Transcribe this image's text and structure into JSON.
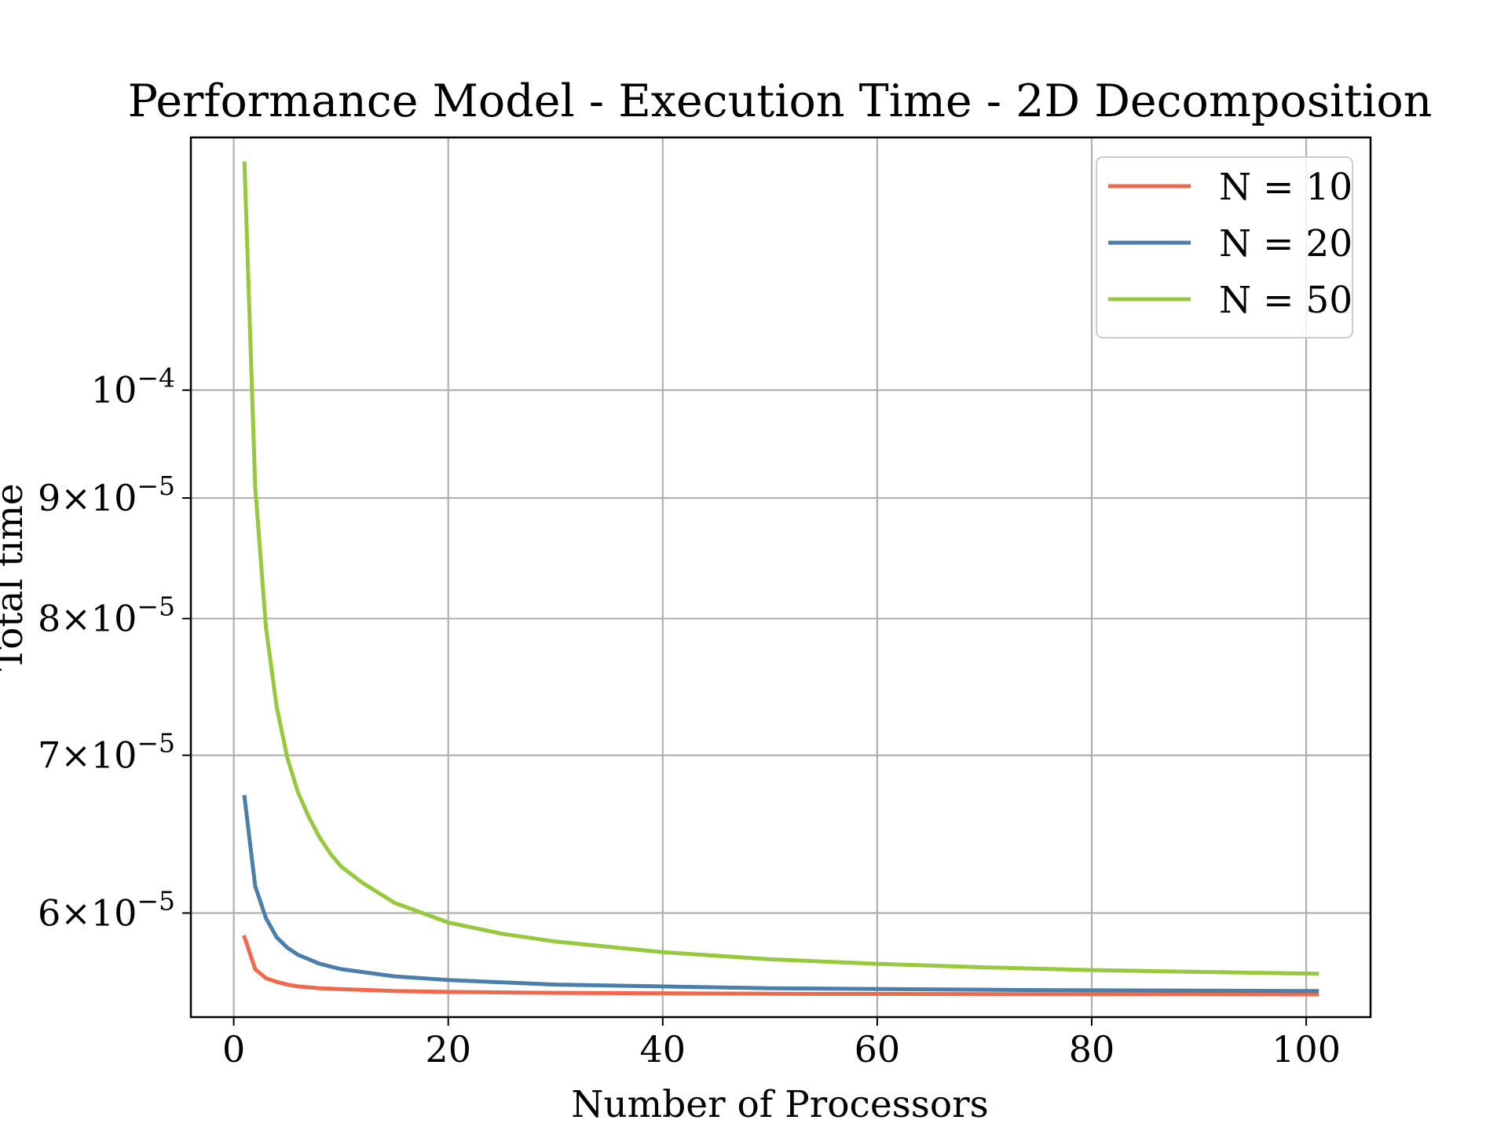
{
  "chart_data": {
    "type": "line",
    "title": "Performance Model - Execution Time - 2D Decomposition",
    "xlabel": "Number of Processors",
    "ylabel": "Total time",
    "xlim": [
      -4,
      106
    ],
    "ylim": [
      5.42e-05,
      0.000128
    ],
    "yscale": "log",
    "grid": true,
    "legend_position": "top-right",
    "x_ticks": [
      {
        "value": 0,
        "label": "0"
      },
      {
        "value": 20,
        "label": "20"
      },
      {
        "value": 40,
        "label": "40"
      },
      {
        "value": 60,
        "label": "60"
      },
      {
        "value": 80,
        "label": "80"
      },
      {
        "value": 100,
        "label": "100"
      }
    ],
    "y_ticks": [
      {
        "value": 0.0001,
        "mant": "10",
        "exp": "−4"
      },
      {
        "value": 9e-05,
        "mant": "9×10",
        "exp": "−5"
      },
      {
        "value": 8e-05,
        "mant": "8×10",
        "exp": "−5"
      },
      {
        "value": 7e-05,
        "mant": "7×10",
        "exp": "−5"
      },
      {
        "value": 6e-05,
        "mant": "6×10",
        "exp": "−5"
      }
    ],
    "series": [
      {
        "name": "N = 10",
        "color": "#f0694d",
        "x": [
          1,
          2,
          3,
          4,
          5,
          6,
          8,
          10,
          15,
          20,
          30,
          50,
          75,
          101
        ],
        "y": [
          5.86e-05,
          5.68e-05,
          5.63e-05,
          5.61e-05,
          5.595e-05,
          5.585e-05,
          5.575e-05,
          5.57e-05,
          5.56e-05,
          5.555e-05,
          5.55e-05,
          5.545e-05,
          5.543e-05,
          5.542e-05
        ]
      },
      {
        "name": "N = 20",
        "color": "#4a7eac",
        "x": [
          1,
          2,
          3,
          4,
          5,
          6,
          8,
          10,
          15,
          20,
          30,
          50,
          75,
          101
        ],
        "y": [
          6.72e-05,
          6.16e-05,
          5.97e-05,
          5.86e-05,
          5.8e-05,
          5.76e-05,
          5.71e-05,
          5.68e-05,
          5.64e-05,
          5.62e-05,
          5.595e-05,
          5.575e-05,
          5.565e-05,
          5.56e-05
        ]
      },
      {
        "name": "N = 50",
        "color": "#97c93d",
        "x": [
          1,
          2,
          3,
          4,
          5,
          6,
          7,
          8,
          9,
          10,
          12,
          15,
          20,
          25,
          30,
          40,
          50,
          60,
          70,
          80,
          90,
          101
        ],
        "y": [
          0.0001248,
          9.1e-05,
          7.93e-05,
          7.34e-05,
          6.98e-05,
          6.75e-05,
          6.59e-05,
          6.46e-05,
          6.36e-05,
          6.28e-05,
          6.18e-05,
          6.06e-05,
          5.945e-05,
          5.88e-05,
          5.835e-05,
          5.775e-05,
          5.735e-05,
          5.71e-05,
          5.69e-05,
          5.675e-05,
          5.665e-05,
          5.655e-05
        ]
      }
    ]
  }
}
